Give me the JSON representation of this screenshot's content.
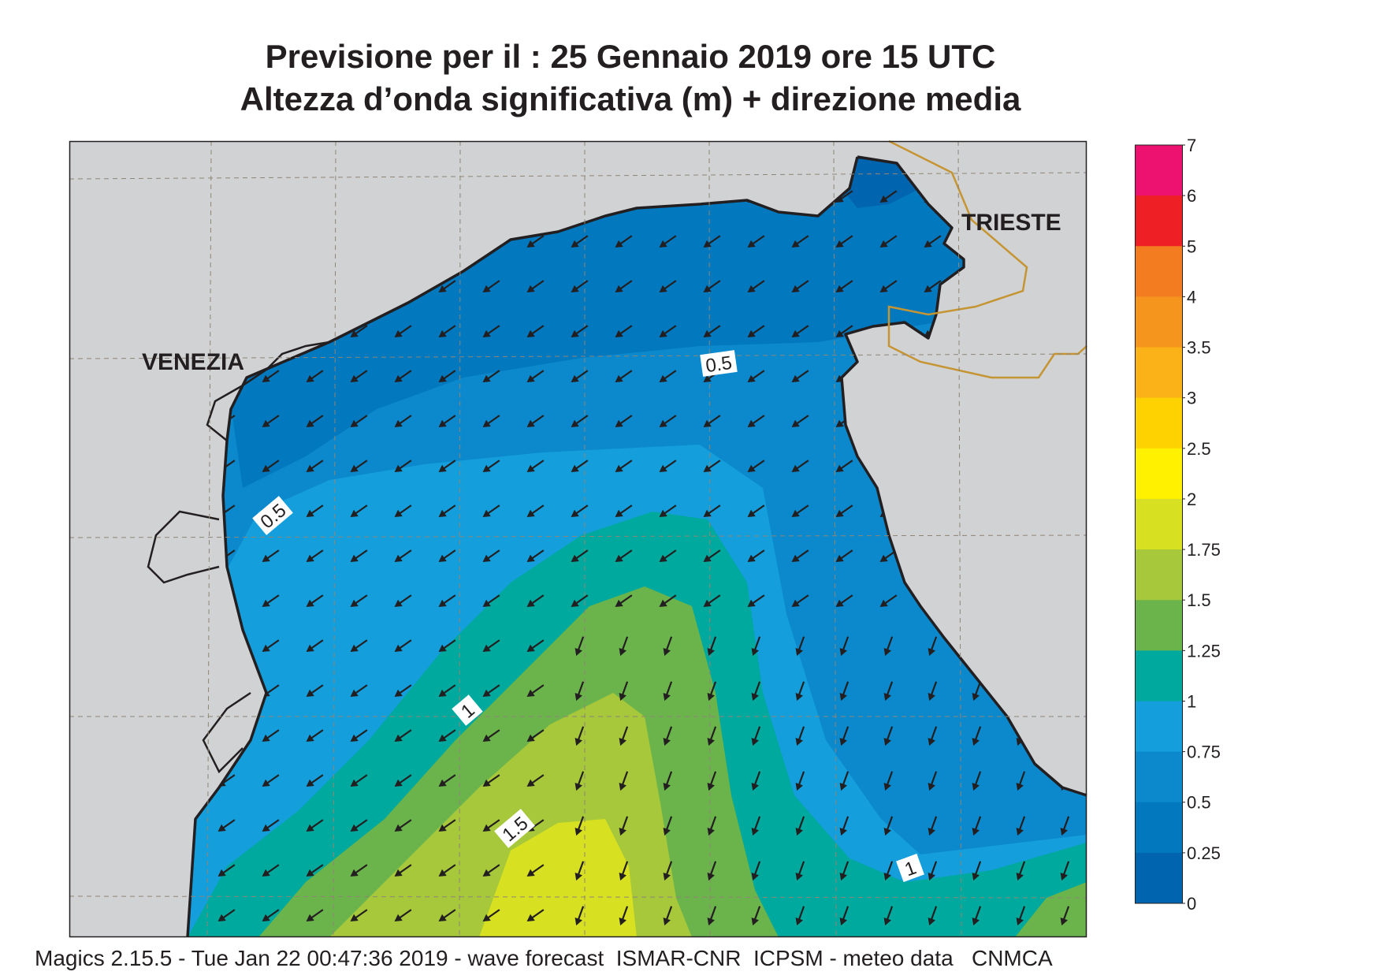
{
  "title": {
    "line1": "Previsione per il  :  25  Gennaio  2019   ore 15 UTC",
    "line2": "Altezza d’onda significativa (m) + direzione media"
  },
  "places": [
    {
      "name": "VENEZIA",
      "key": "venezia"
    },
    {
      "name": "TRIESTE",
      "key": "trieste"
    }
  ],
  "contour_labels": [
    "0.5",
    "0.5",
    "1",
    "1.5",
    "1"
  ],
  "legend": {
    "ticks": [
      "7",
      "6",
      "5",
      "4",
      "3.5",
      "3",
      "2.5",
      "2",
      "1.75",
      "1.5",
      "1.25",
      "1",
      "0.75",
      "0.5",
      "0.25",
      "0"
    ],
    "colors": [
      "#ee1270",
      "#ee2026",
      "#f37c20",
      "#f6951e",
      "#fbb219",
      "#fdd200",
      "#fff100",
      "#d7e021",
      "#a6c83a",
      "#6bb44c",
      "#00a99d",
      "#149edc",
      "#0b89cc",
      "#0278be",
      "#0064af"
    ]
  },
  "colors": {
    "land": "#d1d2d4",
    "coast": "#231f20",
    "border": "#c69533",
    "arrow": "#231f20",
    "grid": "#8f8576"
  },
  "footer": "Magics 2.15.5 - Tue Jan 22 00:47:36 2019 - wave forecast  ISMAR-CNR  ICPSM - meteo data   CNMCA"
}
